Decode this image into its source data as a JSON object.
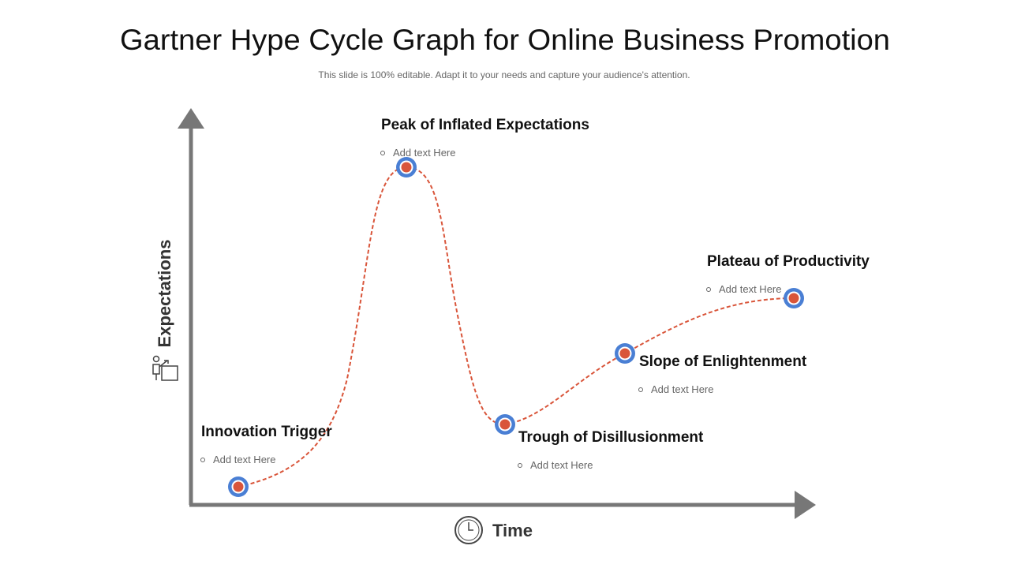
{
  "header": {
    "title": "Gartner Hype Cycle Graph for Online Business Promotion",
    "subtitle": "This slide is 100% editable. Adapt it to your needs and capture your audience's attention."
  },
  "axes": {
    "y_label": "Expectations",
    "x_label": "Time"
  },
  "stages": [
    {
      "title": "Innovation Trigger",
      "text": "Add text Here"
    },
    {
      "title": "Peak of Inflated Expectations",
      "text": "Add text Here"
    },
    {
      "title": "Trough of Disillusionment",
      "text": "Add text Here"
    },
    {
      "title": "Slope of Enlightenment",
      "text": "Add text Here"
    },
    {
      "title": "Plateau of Productivity",
      "text": "Add text Here"
    }
  ]
}
